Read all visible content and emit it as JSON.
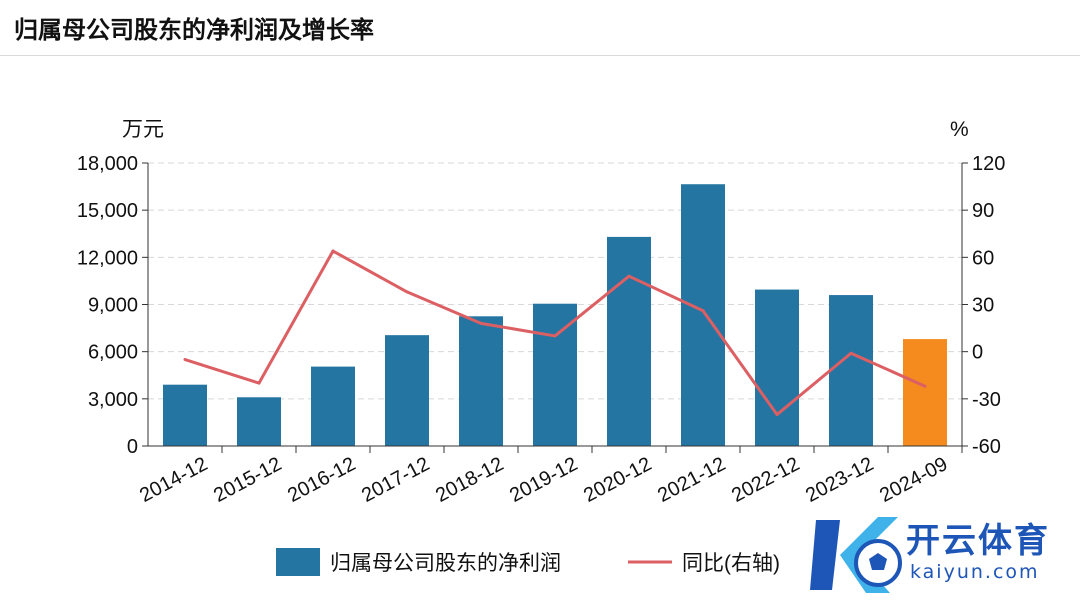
{
  "page": {
    "title": "归属母公司股东的净利润及增长率"
  },
  "watermark": {
    "name": "开云体育",
    "url": "kaiyun.com"
  },
  "chart_data": {
    "type": "bar",
    "title": "归属母公司股东的净利润及增长率",
    "categories": [
      "2014-12",
      "2015-12",
      "2016-12",
      "2017-12",
      "2018-12",
      "2019-12",
      "2020-12",
      "2021-12",
      "2022-12",
      "2023-12",
      "2024-09"
    ],
    "left_axis": {
      "unit": "万元",
      "ylim": [
        0,
        18000
      ],
      "ticks": [
        "0",
        "3,000",
        "6,000",
        "9,000",
        "12,000",
        "15,000",
        "18,000"
      ]
    },
    "right_axis": {
      "unit": "%",
      "ylim": [
        -60,
        120
      ],
      "ticks": [
        "-60",
        "-30",
        "0",
        "30",
        "60",
        "90",
        "120"
      ]
    },
    "series": [
      {
        "name": "归属母公司股东的净利润",
        "kind": "bar",
        "axis": "left",
        "color": "#2475a2",
        "last_color": "#f58a1f",
        "values": [
          3900,
          3100,
          5050,
          7050,
          8250,
          9050,
          13300,
          16650,
          9950,
          9600,
          6800
        ]
      },
      {
        "name": "同比(右轴)",
        "kind": "line",
        "axis": "right",
        "color": "#dc5f63",
        "values": [
          -5,
          -20,
          64,
          38,
          18,
          10,
          48,
          26,
          -40,
          -1,
          -22
        ]
      }
    ],
    "grid": true,
    "legend": "bottom"
  }
}
